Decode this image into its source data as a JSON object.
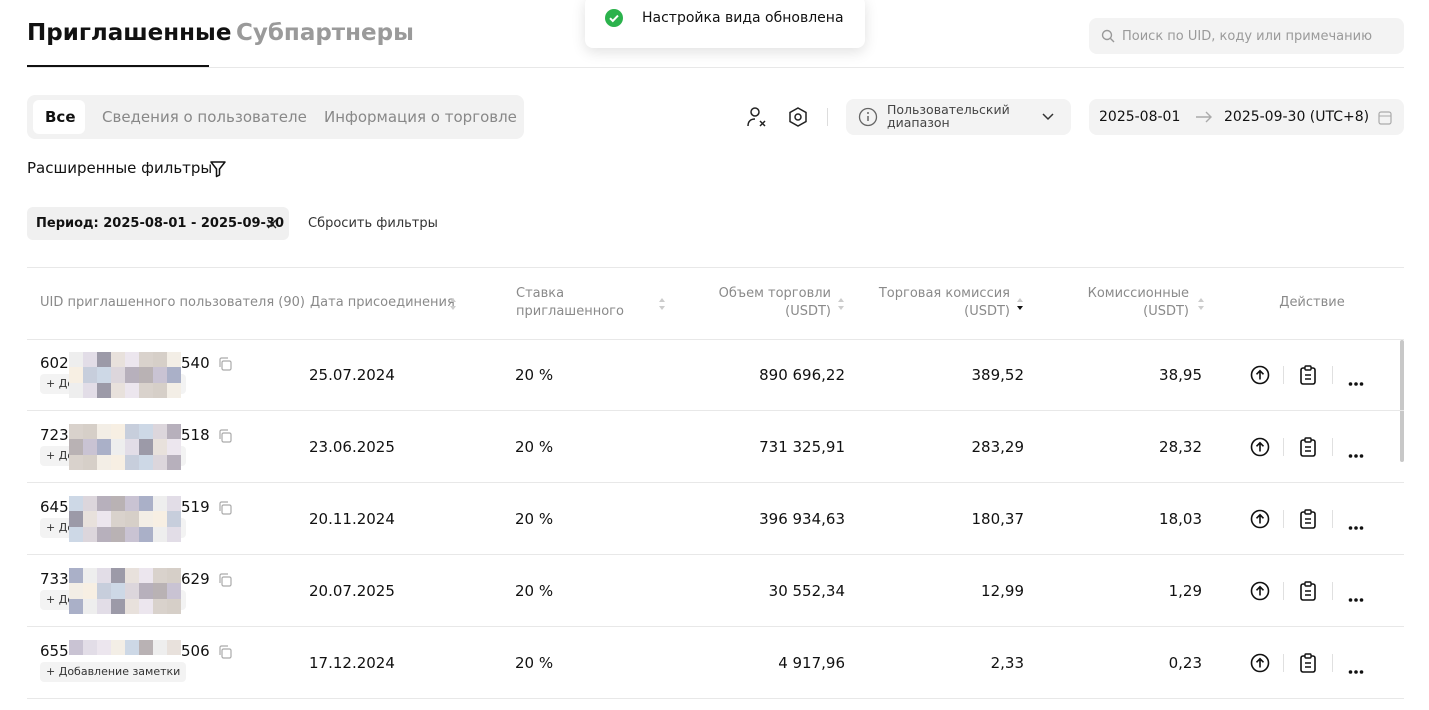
{
  "tabs": [
    "Приглашенные",
    "Субпартнеры"
  ],
  "toast": "Настройка вида обновлена",
  "search_placeholder": "Поиск по UID, коду или примечанию",
  "view_tabs": [
    "Все",
    "Сведения о пользователе",
    "Информация о торговле"
  ],
  "range_select": "Пользовательский диапазон",
  "date_from": "2025-08-01",
  "date_to": "2025-09-30 (UTC+8)",
  "advanced_filters": "Расширенные фильтры",
  "filter_chip": "Период: 2025-08-01 - 2025-09-30",
  "reset_filters": "Сбросить фильтры",
  "table": {
    "columns": [
      "UID приглашенного пользователя (90)",
      "Дата присоединения",
      "Ставка приглашенного",
      "Объем торговли (USDT)",
      "Торговая комиссия (USDT)",
      "Комиссионные (USDT)",
      "Действие"
    ],
    "rows": [
      {
        "uid_start": "602",
        "uid_end": "540",
        "note": "Добавление заметки",
        "date": "25.07.2024",
        "rate": "20 %",
        "volume": "890 696,22",
        "fee": "389,52",
        "commission": "38,95"
      },
      {
        "uid_start": "723",
        "uid_end": "518",
        "note": "Добавление заметки",
        "date": "23.06.2025",
        "rate": "20 %",
        "volume": "731 325,91",
        "fee": "283,29",
        "commission": "28,32"
      },
      {
        "uid_start": "645",
        "uid_end": "519",
        "note": "Добавление заметки",
        "date": "20.11.2024",
        "rate": "20 %",
        "volume": "396 934,63",
        "fee": "180,37",
        "commission": "18,03"
      },
      {
        "uid_start": "733",
        "uid_end": "629",
        "note": "Добавление заметки",
        "date": "20.07.2025",
        "rate": "20 %",
        "volume": "30 552,34",
        "fee": "12,99",
        "commission": "1,29"
      },
      {
        "uid_start": "655",
        "uid_end": "506",
        "note": "Добавление заметки",
        "date": "17.12.2024",
        "rate": "20 %",
        "volume": "4 917,96",
        "fee": "2,33",
        "commission": "0,23"
      }
    ]
  }
}
